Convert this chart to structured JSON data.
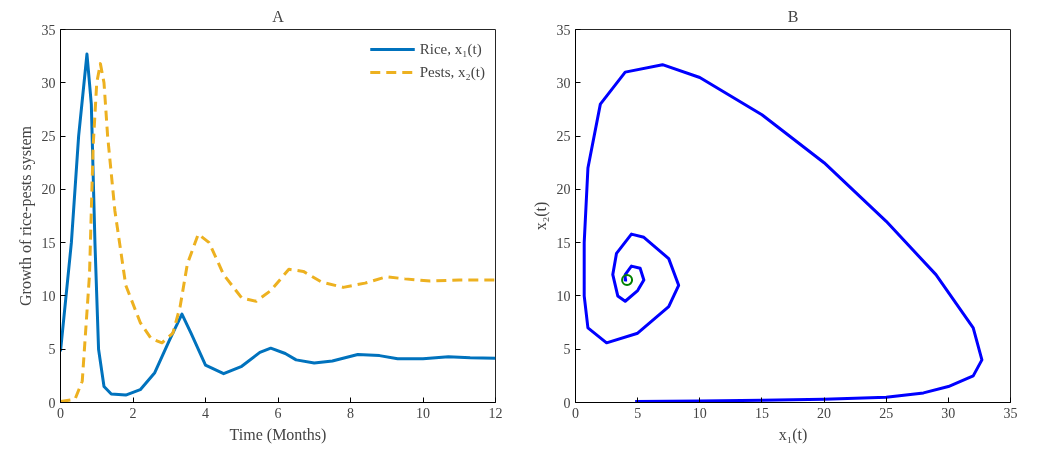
{
  "chart_data": [
    {
      "type": "line",
      "title": "A",
      "xlabel": "Time (Months)",
      "ylabel": "Growth of rice-pests system",
      "xlim": [
        0,
        12
      ],
      "xticks": [
        0,
        2,
        4,
        6,
        8,
        10,
        12
      ],
      "ylim": [
        0,
        35
      ],
      "yticks": [
        0,
        5,
        10,
        15,
        20,
        25,
        30,
        35
      ],
      "grid": false,
      "legend": "top right",
      "series": [
        {
          "name": "Rice, x₁(t)",
          "color": "#0072bd",
          "line_style": "solid",
          "x": [
            0,
            0.3,
            0.5,
            0.73,
            0.85,
            0.95,
            1.05,
            1.2,
            1.4,
            1.8,
            2.2,
            2.6,
            3.0,
            3.35,
            3.6,
            4.0,
            4.5,
            5.0,
            5.5,
            5.8,
            6.2,
            6.5,
            7.0,
            7.5,
            8.2,
            8.8,
            9.3,
            10,
            10.7,
            11.3,
            12
          ],
          "values": [
            4.8,
            15,
            25,
            32.7,
            28,
            15,
            5,
            1.5,
            0.8,
            0.7,
            1.2,
            2.8,
            5.8,
            8.3,
            6.5,
            3.5,
            2.7,
            3.4,
            4.7,
            5.1,
            4.6,
            4.0,
            3.7,
            3.9,
            4.5,
            4.4,
            4.1,
            4.1,
            4.3,
            4.2,
            4.15
          ]
        },
        {
          "name": "Pests, x₂(t)",
          "color": "#edb120",
          "line_style": "dashed",
          "x": [
            0,
            0.4,
            0.6,
            0.8,
            0.9,
            1.0,
            1.1,
            1.2,
            1.3,
            1.5,
            1.8,
            2.2,
            2.5,
            2.8,
            3.1,
            3.3,
            3.5,
            3.8,
            4.1,
            4.5,
            5.0,
            5.4,
            5.8,
            6.3,
            6.7,
            7.2,
            7.8,
            8.4,
            9.0,
            9.5,
            10.2,
            11,
            12
          ],
          "values": [
            0.1,
            0.3,
            2,
            12,
            24,
            30,
            31.8,
            30,
            25,
            18,
            11,
            7.5,
            6,
            5.6,
            6.5,
            9,
            13,
            15.8,
            15,
            12,
            9.8,
            9.5,
            10.5,
            12.5,
            12.3,
            11.3,
            10.8,
            11.2,
            11.8,
            11.6,
            11.4,
            11.5,
            11.5
          ]
        }
      ]
    },
    {
      "type": "line",
      "title": "B",
      "xlabel": "x₁(t)",
      "ylabel": "x₂(t)",
      "xlim": [
        0,
        35
      ],
      "xticks": [
        0,
        5,
        10,
        15,
        20,
        25,
        30,
        35
      ],
      "ylim": [
        0,
        35
      ],
      "yticks": [
        0,
        5,
        10,
        15,
        20,
        25,
        30,
        35
      ],
      "grid": false,
      "legend": false,
      "series": [
        {
          "color": "#0000ff",
          "line_style": "solid",
          "x": [
            4.8,
            10,
            15,
            20,
            25,
            28,
            30,
            32,
            32.7,
            32,
            29,
            25,
            20,
            15,
            10,
            7,
            4,
            2,
            1,
            0.7,
            0.7,
            1,
            2.5,
            5,
            7.5,
            8.3,
            7.5,
            5.5,
            4.5,
            3.3,
            3,
            3.4,
            4,
            5,
            5.5,
            5.2,
            4.5,
            4,
            4,
            4.15
          ],
          "values": [
            0.1,
            0.15,
            0.2,
            0.3,
            0.5,
            0.9,
            1.5,
            2.5,
            4,
            7,
            12,
            17,
            22.5,
            27,
            30.5,
            31.7,
            31,
            28,
            22,
            15,
            10,
            7,
            5.6,
            6.5,
            9,
            11,
            13.5,
            15.5,
            15.8,
            14,
            12,
            10,
            9.5,
            10.5,
            11.5,
            12.6,
            12.8,
            12,
            11.5,
            11.5
          ]
        },
        {
          "type": "scatter",
          "marker": "circle",
          "color": "#008000",
          "x": [
            4.15
          ],
          "values": [
            11.5
          ]
        }
      ]
    }
  ]
}
